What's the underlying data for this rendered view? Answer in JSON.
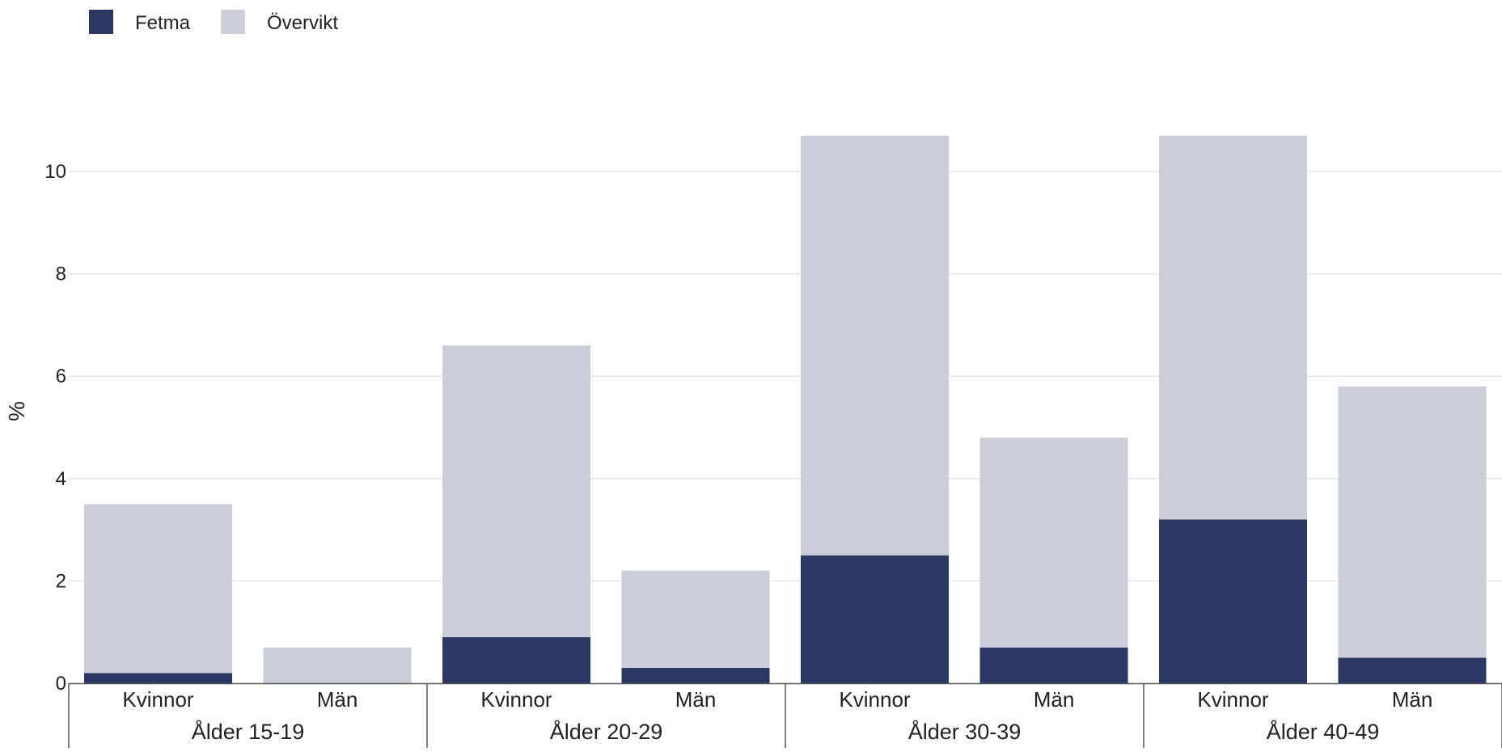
{
  "chart_data": {
    "type": "bar",
    "stacked": true,
    "title": "",
    "xlabel": "",
    "ylabel": "%",
    "ylim": [
      0,
      11
    ],
    "yticks": [
      0,
      2,
      4,
      6,
      8,
      10
    ],
    "grid": true,
    "legend_position": "top-left",
    "groups": [
      {
        "label": "Ålder 15-19",
        "categories": [
          "Kvinnor",
          "Män"
        ]
      },
      {
        "label": "Ålder 20-29",
        "categories": [
          "Kvinnor",
          "Män"
        ]
      },
      {
        "label": "Ålder 30-39",
        "categories": [
          "Kvinnor",
          "Män"
        ]
      },
      {
        "label": "Ålder 40-49",
        "categories": [
          "Kvinnor",
          "Män"
        ]
      }
    ],
    "categories": [
      "Kvinnor",
      "Män",
      "Kvinnor",
      "Män",
      "Kvinnor",
      "Män",
      "Kvinnor",
      "Män"
    ],
    "series": [
      {
        "name": "Fetma",
        "color": "#2b3864",
        "values": [
          0.2,
          0.0,
          0.9,
          0.3,
          2.5,
          0.7,
          3.2,
          0.5
        ]
      },
      {
        "name": "Övervikt",
        "color": "#cbcdd9",
        "values": [
          3.3,
          0.7,
          5.7,
          1.9,
          8.2,
          4.1,
          7.5,
          5.3
        ]
      }
    ]
  }
}
